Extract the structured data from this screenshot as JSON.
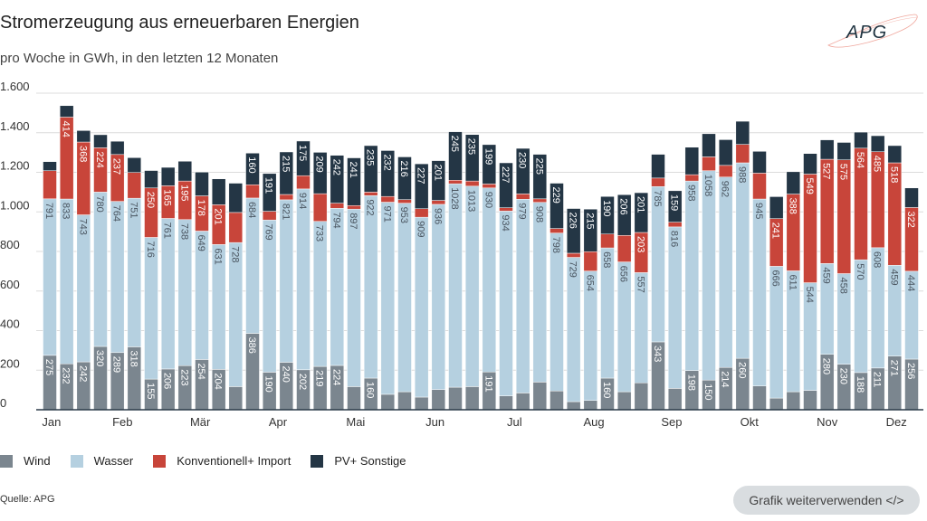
{
  "header": {
    "title": "Stromerzeugung aus erneuerbaren Energien",
    "subtitle": "pro Woche in GWh, in den letzten 12 Monaten",
    "logo_text": "APG"
  },
  "footer": {
    "source": "Quelle: APG",
    "reuse_button": "Grafik weiterverwenden </>"
  },
  "chart_data": {
    "type": "bar",
    "stacked": true,
    "title": "Stromerzeugung aus erneuerbaren Energien",
    "subtitle": "pro Woche in GWh, in den letzten 12 Monaten",
    "ylim": [
      0,
      1600
    ],
    "yticks": [
      0,
      200,
      400,
      600,
      800,
      1000,
      1200,
      1400,
      1600
    ],
    "ytick_labels": [
      "0",
      "200",
      "400",
      "600",
      "800",
      "1.000",
      "1.200",
      "1.400",
      "1.600"
    ],
    "grid": true,
    "legend_position": "bottom-left",
    "month_labels": [
      "Jan",
      "Feb",
      "Mär",
      "Apr",
      "Mai",
      "Jun",
      "Jul",
      "Aug",
      "Sep",
      "Okt",
      "Nov",
      "Dez"
    ],
    "series": [
      {
        "name": "Wind",
        "color": "#7b868f",
        "values": [
          275,
          232,
          242,
          320,
          289,
          318,
          155,
          206,
          223,
          254,
          204,
          117,
          386,
          190,
          240,
          202,
          219,
          224,
          117,
          160,
          78,
          91,
          64,
          102,
          114,
          117,
          191,
          70,
          85,
          140,
          95,
          41,
          47,
          160,
          91,
          136,
          343,
          108,
          198,
          150,
          214,
          260,
          120,
          59,
          91,
          98,
          280,
          230,
          188,
          211,
          271,
          256
        ],
        "labeled": [
          true,
          true,
          true,
          true,
          true,
          true,
          true,
          true,
          true,
          true,
          true,
          false,
          true,
          true,
          true,
          true,
          true,
          true,
          false,
          true,
          false,
          false,
          false,
          false,
          false,
          false,
          true,
          false,
          false,
          false,
          false,
          false,
          false,
          true,
          false,
          false,
          true,
          false,
          true,
          true,
          true,
          true,
          false,
          false,
          false,
          false,
          true,
          true,
          true,
          true,
          true,
          true
        ]
      },
      {
        "name": "Wasser",
        "color": "#b5d0e0",
        "values": [
          791,
          833,
          743,
          780,
          764,
          751,
          716,
          761,
          738,
          649,
          631,
          728,
          684,
          769,
          821,
          914,
          733,
          794,
          897,
          922,
          971,
          953,
          909,
          936,
          1028,
          1013,
          930,
          934,
          979,
          908,
          798,
          729,
          654,
          658,
          656,
          557,
          785,
          816,
          958,
          1058,
          962,
          988,
          945,
          666,
          611,
          544,
          459,
          458,
          570,
          608,
          459,
          444
        ],
        "labeled": [
          true,
          true,
          true,
          true,
          true,
          true,
          true,
          true,
          true,
          true,
          true,
          true,
          true,
          true,
          true,
          true,
          true,
          true,
          true,
          true,
          true,
          true,
          true,
          true,
          true,
          true,
          true,
          true,
          true,
          true,
          true,
          true,
          true,
          true,
          true,
          true,
          true,
          true,
          true,
          true,
          true,
          true,
          true,
          true,
          true,
          true,
          true,
          true,
          true,
          true,
          true,
          true
        ]
      },
      {
        "name": "Konventionell+ Import",
        "color": "#c8453a",
        "values": [
          142,
          414,
          368,
          224,
          237,
          130,
          250,
          165,
          195,
          178,
          201,
          152,
          67,
          44,
          27,
          67,
          140,
          26,
          18,
          18,
          29,
          18,
          43,
          20,
          18,
          26,
          20,
          17,
          27,
          18,
          23,
          21,
          98,
          70,
          134,
          203,
          43,
          24,
          32,
          70,
          59,
          93,
          131,
          241,
          388,
          549,
          527,
          575,
          564,
          485,
          518,
          322
        ],
        "labeled": [
          false,
          true,
          true,
          true,
          true,
          false,
          true,
          true,
          true,
          true,
          true,
          false,
          false,
          false,
          false,
          false,
          false,
          false,
          false,
          false,
          false,
          false,
          false,
          false,
          false,
          false,
          false,
          false,
          false,
          false,
          false,
          false,
          false,
          false,
          false,
          true,
          false,
          false,
          false,
          false,
          false,
          false,
          false,
          true,
          true,
          true,
          true,
          true,
          true,
          true,
          true,
          true
        ]
      },
      {
        "name": "PV+ Sonstige",
        "color": "#243645",
        "values": [
          46,
          58,
          58,
          66,
          67,
          75,
          88,
          93,
          100,
          120,
          131,
          148,
          160,
          191,
          215,
          175,
          209,
          242,
          241,
          235,
          232,
          216,
          227,
          201,
          245,
          235,
          199,
          227,
          230,
          225,
          229,
          226,
          215,
          190,
          206,
          201,
          120,
          159,
          139,
          117,
          130,
          117,
          110,
          111,
          113,
          104,
          98,
          88,
          81,
          81,
          87,
          99
        ],
        "labeled": [
          false,
          false,
          false,
          false,
          false,
          false,
          false,
          false,
          false,
          false,
          false,
          false,
          true,
          true,
          true,
          true,
          true,
          true,
          true,
          true,
          true,
          true,
          true,
          true,
          true,
          true,
          true,
          true,
          true,
          true,
          true,
          true,
          true,
          true,
          true,
          true,
          false,
          true,
          false,
          false,
          false,
          false,
          false,
          false,
          false,
          false,
          false,
          false,
          false,
          false,
          false,
          false
        ]
      }
    ]
  }
}
